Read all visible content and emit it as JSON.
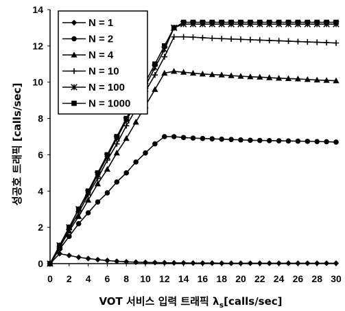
{
  "chart_data": {
    "type": "line",
    "xlabel_prefix": "VOT 서비스 입력 트래픽",
    "xlabel_symbol": "λ",
    "xlabel_sub": "s",
    "xlabel_unit": "[calls/sec]",
    "ylabel": "성공호 트래픽 [calls/sec]",
    "xlim": [
      0,
      30
    ],
    "ylim": [
      0,
      14
    ],
    "xticks": [
      0,
      2,
      4,
      6,
      8,
      10,
      12,
      14,
      16,
      18,
      20,
      22,
      24,
      26,
      28,
      30
    ],
    "yticks": [
      0,
      2,
      4,
      6,
      8,
      10,
      12,
      14
    ],
    "legend_position": "top-left",
    "grid": false,
    "x": [
      0,
      1,
      2,
      3,
      4,
      5,
      6,
      7,
      8,
      9,
      10,
      11,
      12,
      13,
      14,
      15,
      16,
      17,
      18,
      19,
      20,
      21,
      22,
      23,
      24,
      25,
      26,
      27,
      28,
      29,
      30
    ],
    "series": [
      {
        "name": "N = 1",
        "marker": "diamond",
        "values": [
          0,
          0.55,
          0.45,
          0.35,
          0.28,
          0.22,
          0.17,
          0.13,
          0.1,
          0.08,
          0.07,
          0.06,
          0.05,
          0.04,
          0.04,
          0.03,
          0.03,
          0.03,
          0.02,
          0.02,
          0.02,
          0.02,
          0.02,
          0.02,
          0.02,
          0.02,
          0.02,
          0.02,
          0.02,
          0.02,
          0.02
        ]
      },
      {
        "name": "N = 2",
        "marker": "circle",
        "values": [
          0,
          0.8,
          1.5,
          2.2,
          2.8,
          3.4,
          3.9,
          4.5,
          5.0,
          5.6,
          6.1,
          6.6,
          7.0,
          7.0,
          6.95,
          6.92,
          6.9,
          6.88,
          6.86,
          6.84,
          6.82,
          6.8,
          6.79,
          6.78,
          6.77,
          6.76,
          6.75,
          6.74,
          6.73,
          6.72,
          6.7
        ]
      },
      {
        "name": "N = 4",
        "marker": "triangle",
        "values": [
          0,
          0.9,
          1.8,
          2.6,
          3.5,
          4.4,
          5.2,
          6.1,
          6.9,
          7.8,
          8.7,
          9.6,
          10.5,
          10.6,
          10.55,
          10.5,
          10.45,
          10.42,
          10.4,
          10.36,
          10.33,
          10.3,
          10.28,
          10.25,
          10.22,
          10.2,
          10.18,
          10.15,
          10.12,
          10.1,
          10.08
        ]
      },
      {
        "name": "N = 10",
        "marker": "plus",
        "values": [
          0,
          0.95,
          1.9,
          2.8,
          3.8,
          4.7,
          5.7,
          6.6,
          7.6,
          8.5,
          9.5,
          10.4,
          11.4,
          12.5,
          12.5,
          12.48,
          12.45,
          12.42,
          12.4,
          12.38,
          12.36,
          12.34,
          12.32,
          12.3,
          12.28,
          12.26,
          12.24,
          12.22,
          12.2,
          12.18,
          12.16
        ]
      },
      {
        "name": "N = 100",
        "marker": "star",
        "values": [
          0,
          1.0,
          2.0,
          3.0,
          3.9,
          4.9,
          5.9,
          6.9,
          7.9,
          8.8,
          9.8,
          10.8,
          11.8,
          13.0,
          13.2,
          13.2,
          13.2,
          13.2,
          13.2,
          13.2,
          13.2,
          13.2,
          13.2,
          13.2,
          13.2,
          13.2,
          13.2,
          13.2,
          13.2,
          13.2,
          13.2
        ]
      },
      {
        "name": "N = 1000",
        "marker": "square",
        "values": [
          0,
          1.0,
          2.0,
          3.0,
          4.0,
          5.0,
          6.0,
          7.0,
          8.0,
          9.0,
          10.0,
          11.0,
          12.0,
          13.0,
          13.3,
          13.3,
          13.3,
          13.3,
          13.3,
          13.3,
          13.3,
          13.3,
          13.3,
          13.3,
          13.3,
          13.3,
          13.3,
          13.3,
          13.3,
          13.3,
          13.3
        ]
      }
    ]
  }
}
